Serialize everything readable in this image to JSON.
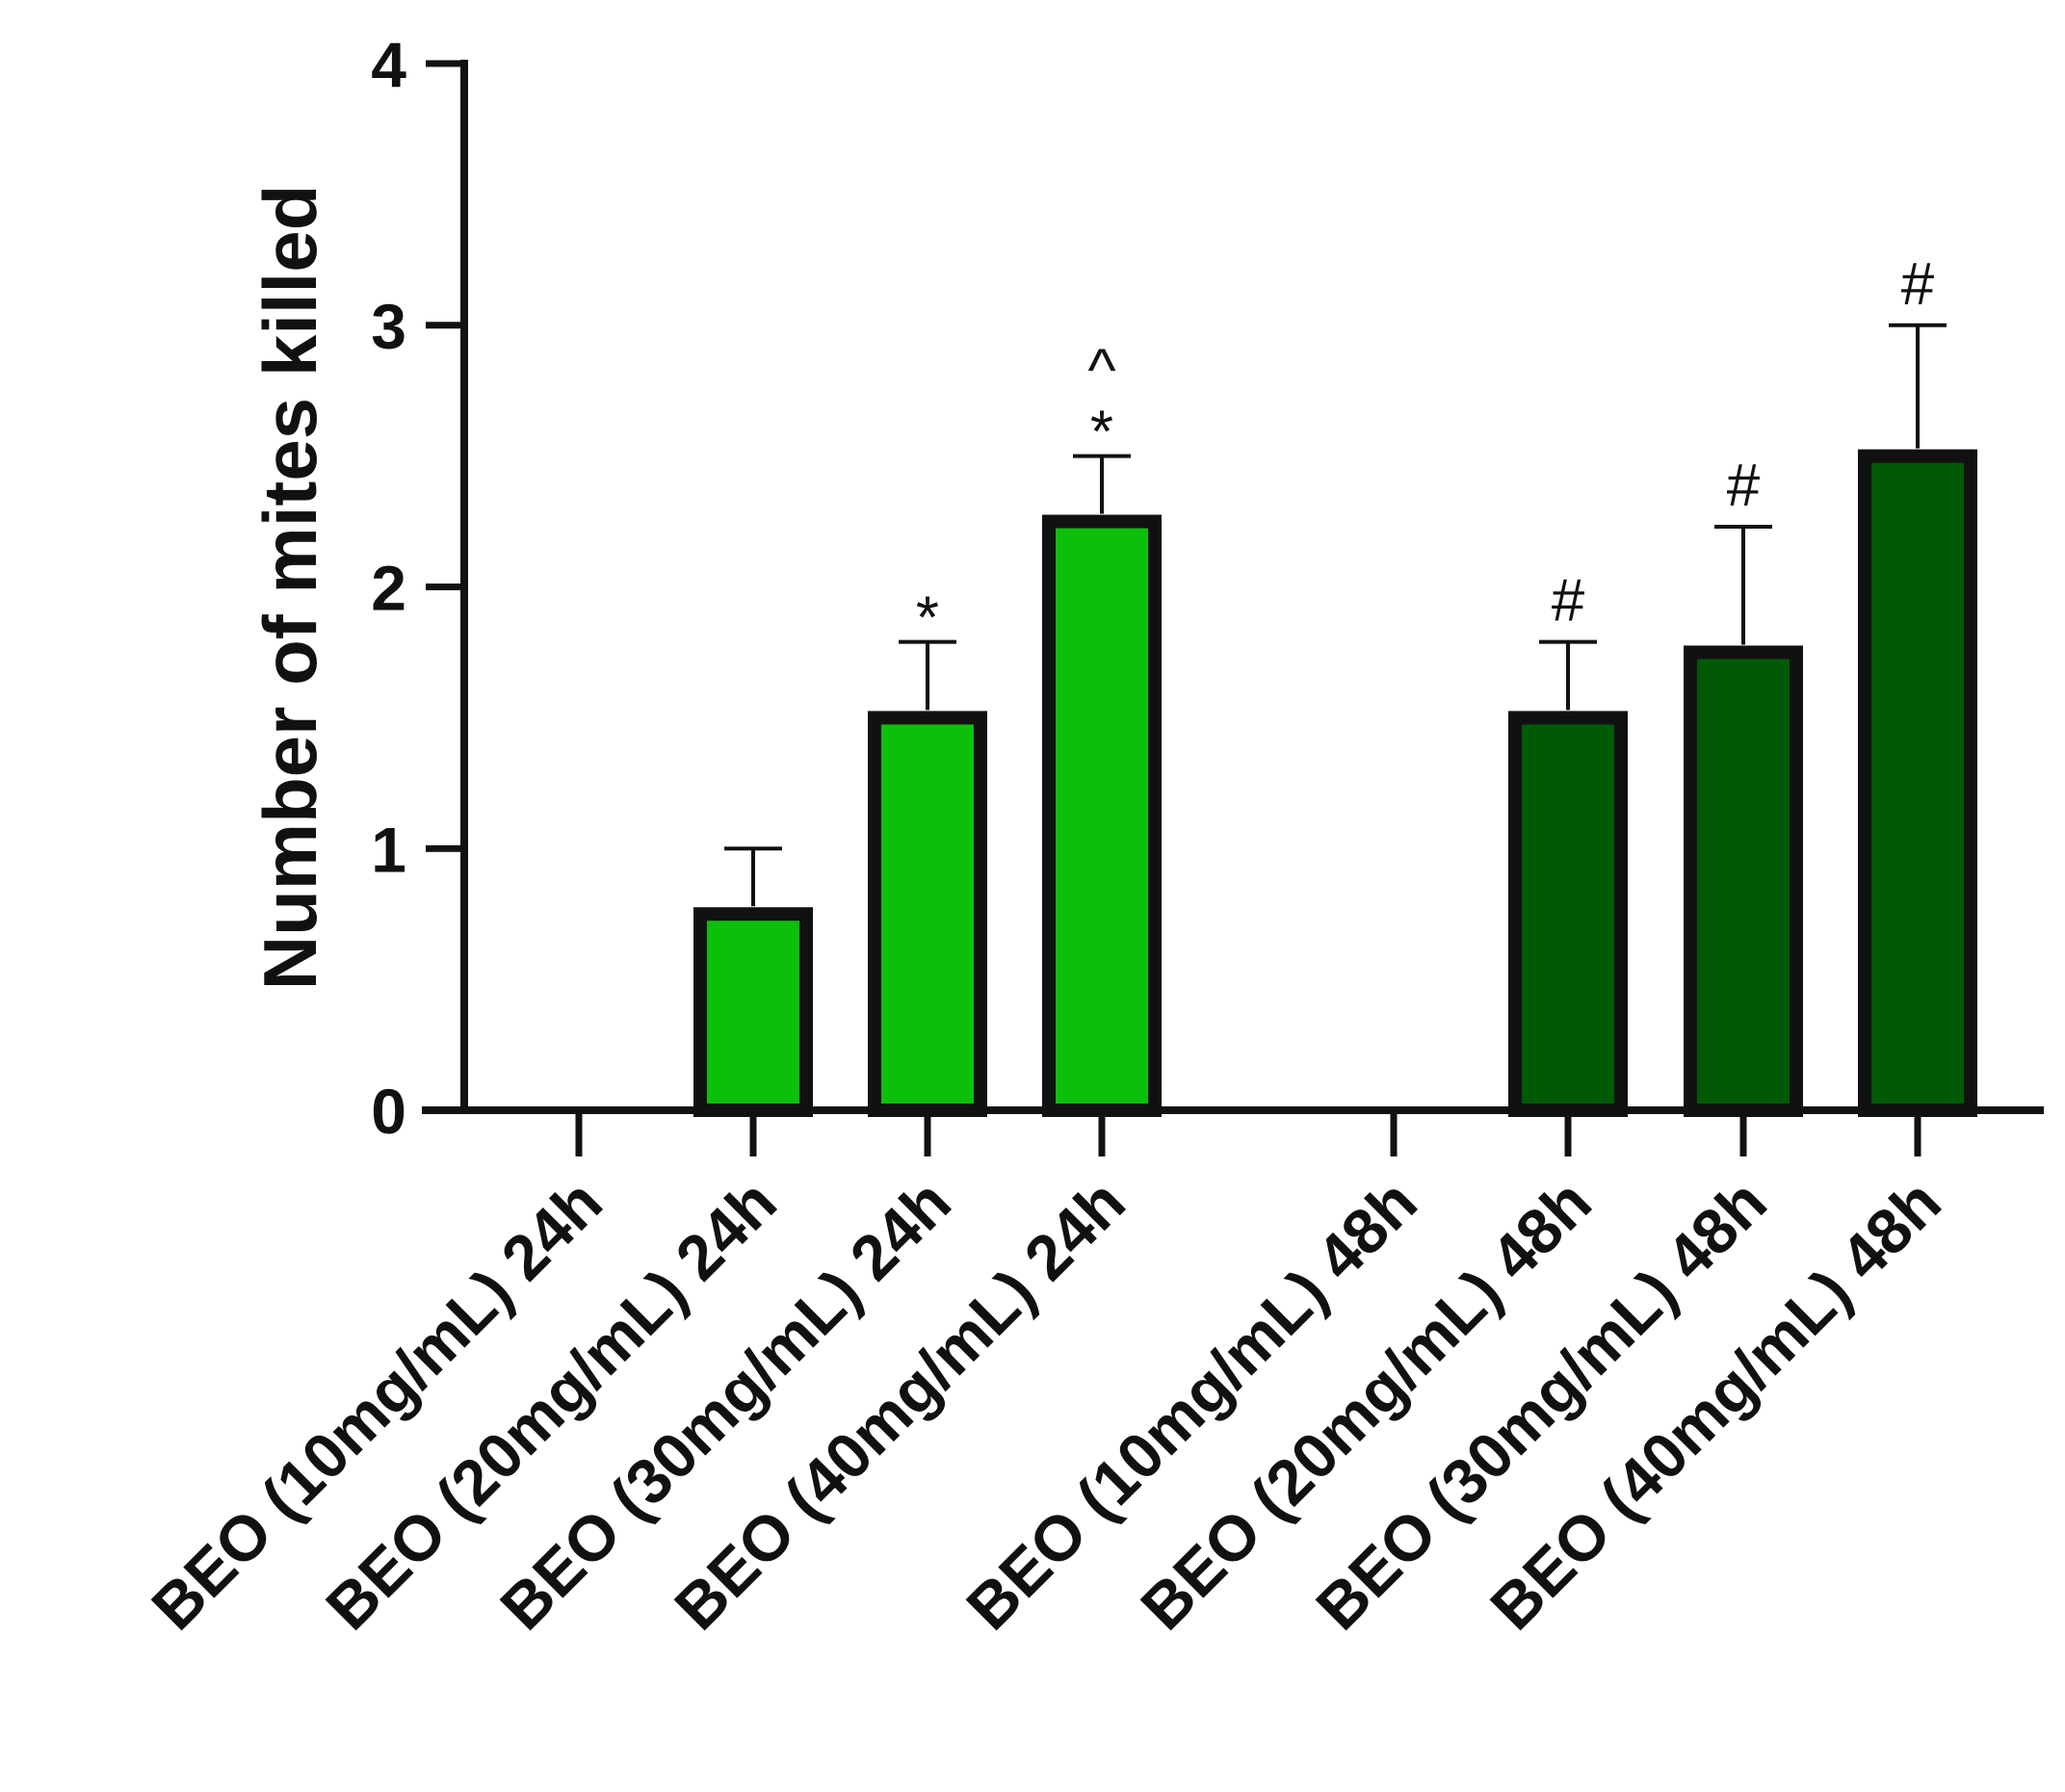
{
  "chart_data": {
    "type": "bar",
    "title": "",
    "xlabel": "",
    "ylabel": "Number of mites killed",
    "ylim": [
      0,
      4
    ],
    "yticks": [
      0,
      1,
      2,
      3,
      4
    ],
    "grid": false,
    "colors": {
      "24h": "#0bbf0b",
      "48h": "#005a05",
      "outline": "#111111"
    },
    "categories": [
      "BEO (10mg/mL) 24h",
      "BEO (20mg/mL) 24h",
      "BEO (30mg/mL) 24h",
      "BEO (40mg/mL) 24h",
      "BEO (10mg/mL) 48h",
      "BEO (20mg/mL) 48h",
      "BEO (30mg/mL) 48h",
      "BEO (40mg/mL) 48h"
    ],
    "groups": [
      "24h",
      "24h",
      "24h",
      "24h",
      "48h",
      "48h",
      "48h",
      "48h"
    ],
    "values": [
      0,
      0.75,
      1.5,
      2.25,
      0,
      1.5,
      1.75,
      2.5
    ],
    "errors": [
      0,
      0.25,
      0.29,
      0.25,
      0,
      0.29,
      0.48,
      0.5
    ],
    "annotations": [
      [],
      [],
      [
        "*"
      ],
      [
        "*",
        "^"
      ],
      [],
      [
        "#"
      ],
      [
        "#"
      ],
      [
        "#"
      ]
    ]
  }
}
